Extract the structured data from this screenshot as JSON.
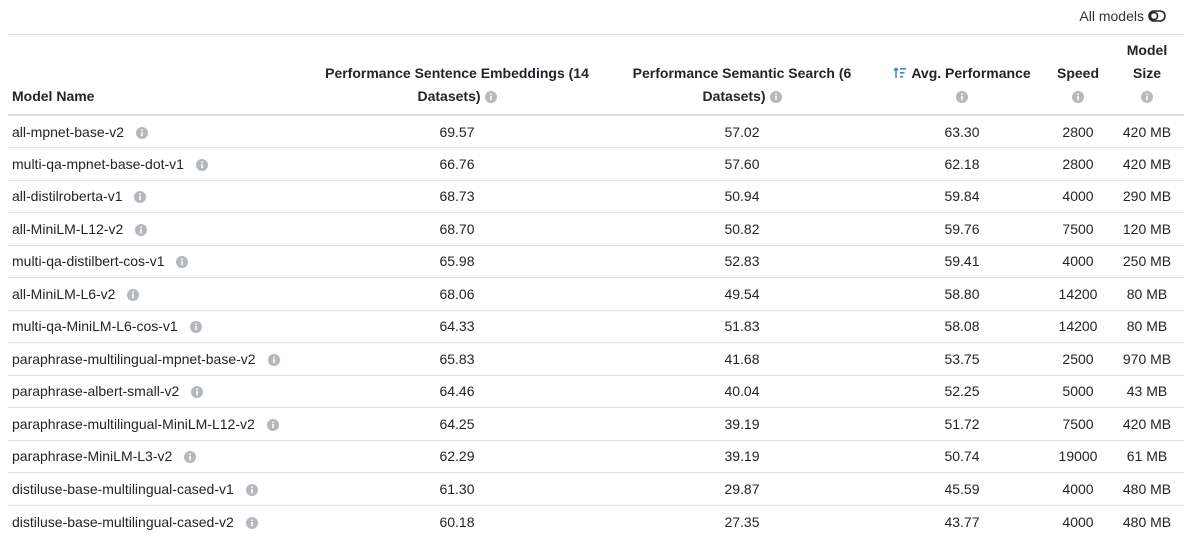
{
  "toggle": {
    "label": "All models",
    "icon": "toggle-icon"
  },
  "headers": {
    "model_name": "Model Name",
    "sentence_line1": "Performance Sentence Embeddings (14",
    "sentence_line2": "Datasets)",
    "semantic_line1": "Performance Semantic Search (6",
    "semantic_line2": "Datasets)",
    "avg": "Avg. Performance",
    "speed": "Speed",
    "size": "Model Size"
  },
  "icons": {
    "info": "info-icon",
    "sort": "sort-descending-icon"
  },
  "colors": {
    "accent": "#3c86c4",
    "icon_gray": "#b5b9bd",
    "border": "#dee2e6"
  },
  "rows": [
    {
      "name": "all-mpnet-base-v2",
      "sentence": "69.57",
      "semantic": "57.02",
      "avg": "63.30",
      "speed": "2800",
      "size": "420 MB"
    },
    {
      "name": "multi-qa-mpnet-base-dot-v1",
      "sentence": "66.76",
      "semantic": "57.60",
      "avg": "62.18",
      "speed": "2800",
      "size": "420 MB"
    },
    {
      "name": "all-distilroberta-v1",
      "sentence": "68.73",
      "semantic": "50.94",
      "avg": "59.84",
      "speed": "4000",
      "size": "290 MB"
    },
    {
      "name": "all-MiniLM-L12-v2",
      "sentence": "68.70",
      "semantic": "50.82",
      "avg": "59.76",
      "speed": "7500",
      "size": "120 MB"
    },
    {
      "name": "multi-qa-distilbert-cos-v1",
      "sentence": "65.98",
      "semantic": "52.83",
      "avg": "59.41",
      "speed": "4000",
      "size": "250 MB"
    },
    {
      "name": "all-MiniLM-L6-v2",
      "sentence": "68.06",
      "semantic": "49.54",
      "avg": "58.80",
      "speed": "14200",
      "size": "80 MB"
    },
    {
      "name": "multi-qa-MiniLM-L6-cos-v1",
      "sentence": "64.33",
      "semantic": "51.83",
      "avg": "58.08",
      "speed": "14200",
      "size": "80 MB"
    },
    {
      "name": "paraphrase-multilingual-mpnet-base-v2",
      "sentence": "65.83",
      "semantic": "41.68",
      "avg": "53.75",
      "speed": "2500",
      "size": "970 MB"
    },
    {
      "name": "paraphrase-albert-small-v2",
      "sentence": "64.46",
      "semantic": "40.04",
      "avg": "52.25",
      "speed": "5000",
      "size": "43 MB"
    },
    {
      "name": "paraphrase-multilingual-MiniLM-L12-v2",
      "sentence": "64.25",
      "semantic": "39.19",
      "avg": "51.72",
      "speed": "7500",
      "size": "420 MB"
    },
    {
      "name": "paraphrase-MiniLM-L3-v2",
      "sentence": "62.29",
      "semantic": "39.19",
      "avg": "50.74",
      "speed": "19000",
      "size": "61 MB"
    },
    {
      "name": "distiluse-base-multilingual-cased-v1",
      "sentence": "61.30",
      "semantic": "29.87",
      "avg": "45.59",
      "speed": "4000",
      "size": "480 MB"
    },
    {
      "name": "distiluse-base-multilingual-cased-v2",
      "sentence": "60.18",
      "semantic": "27.35",
      "avg": "43.77",
      "speed": "4000",
      "size": "480 MB"
    }
  ]
}
